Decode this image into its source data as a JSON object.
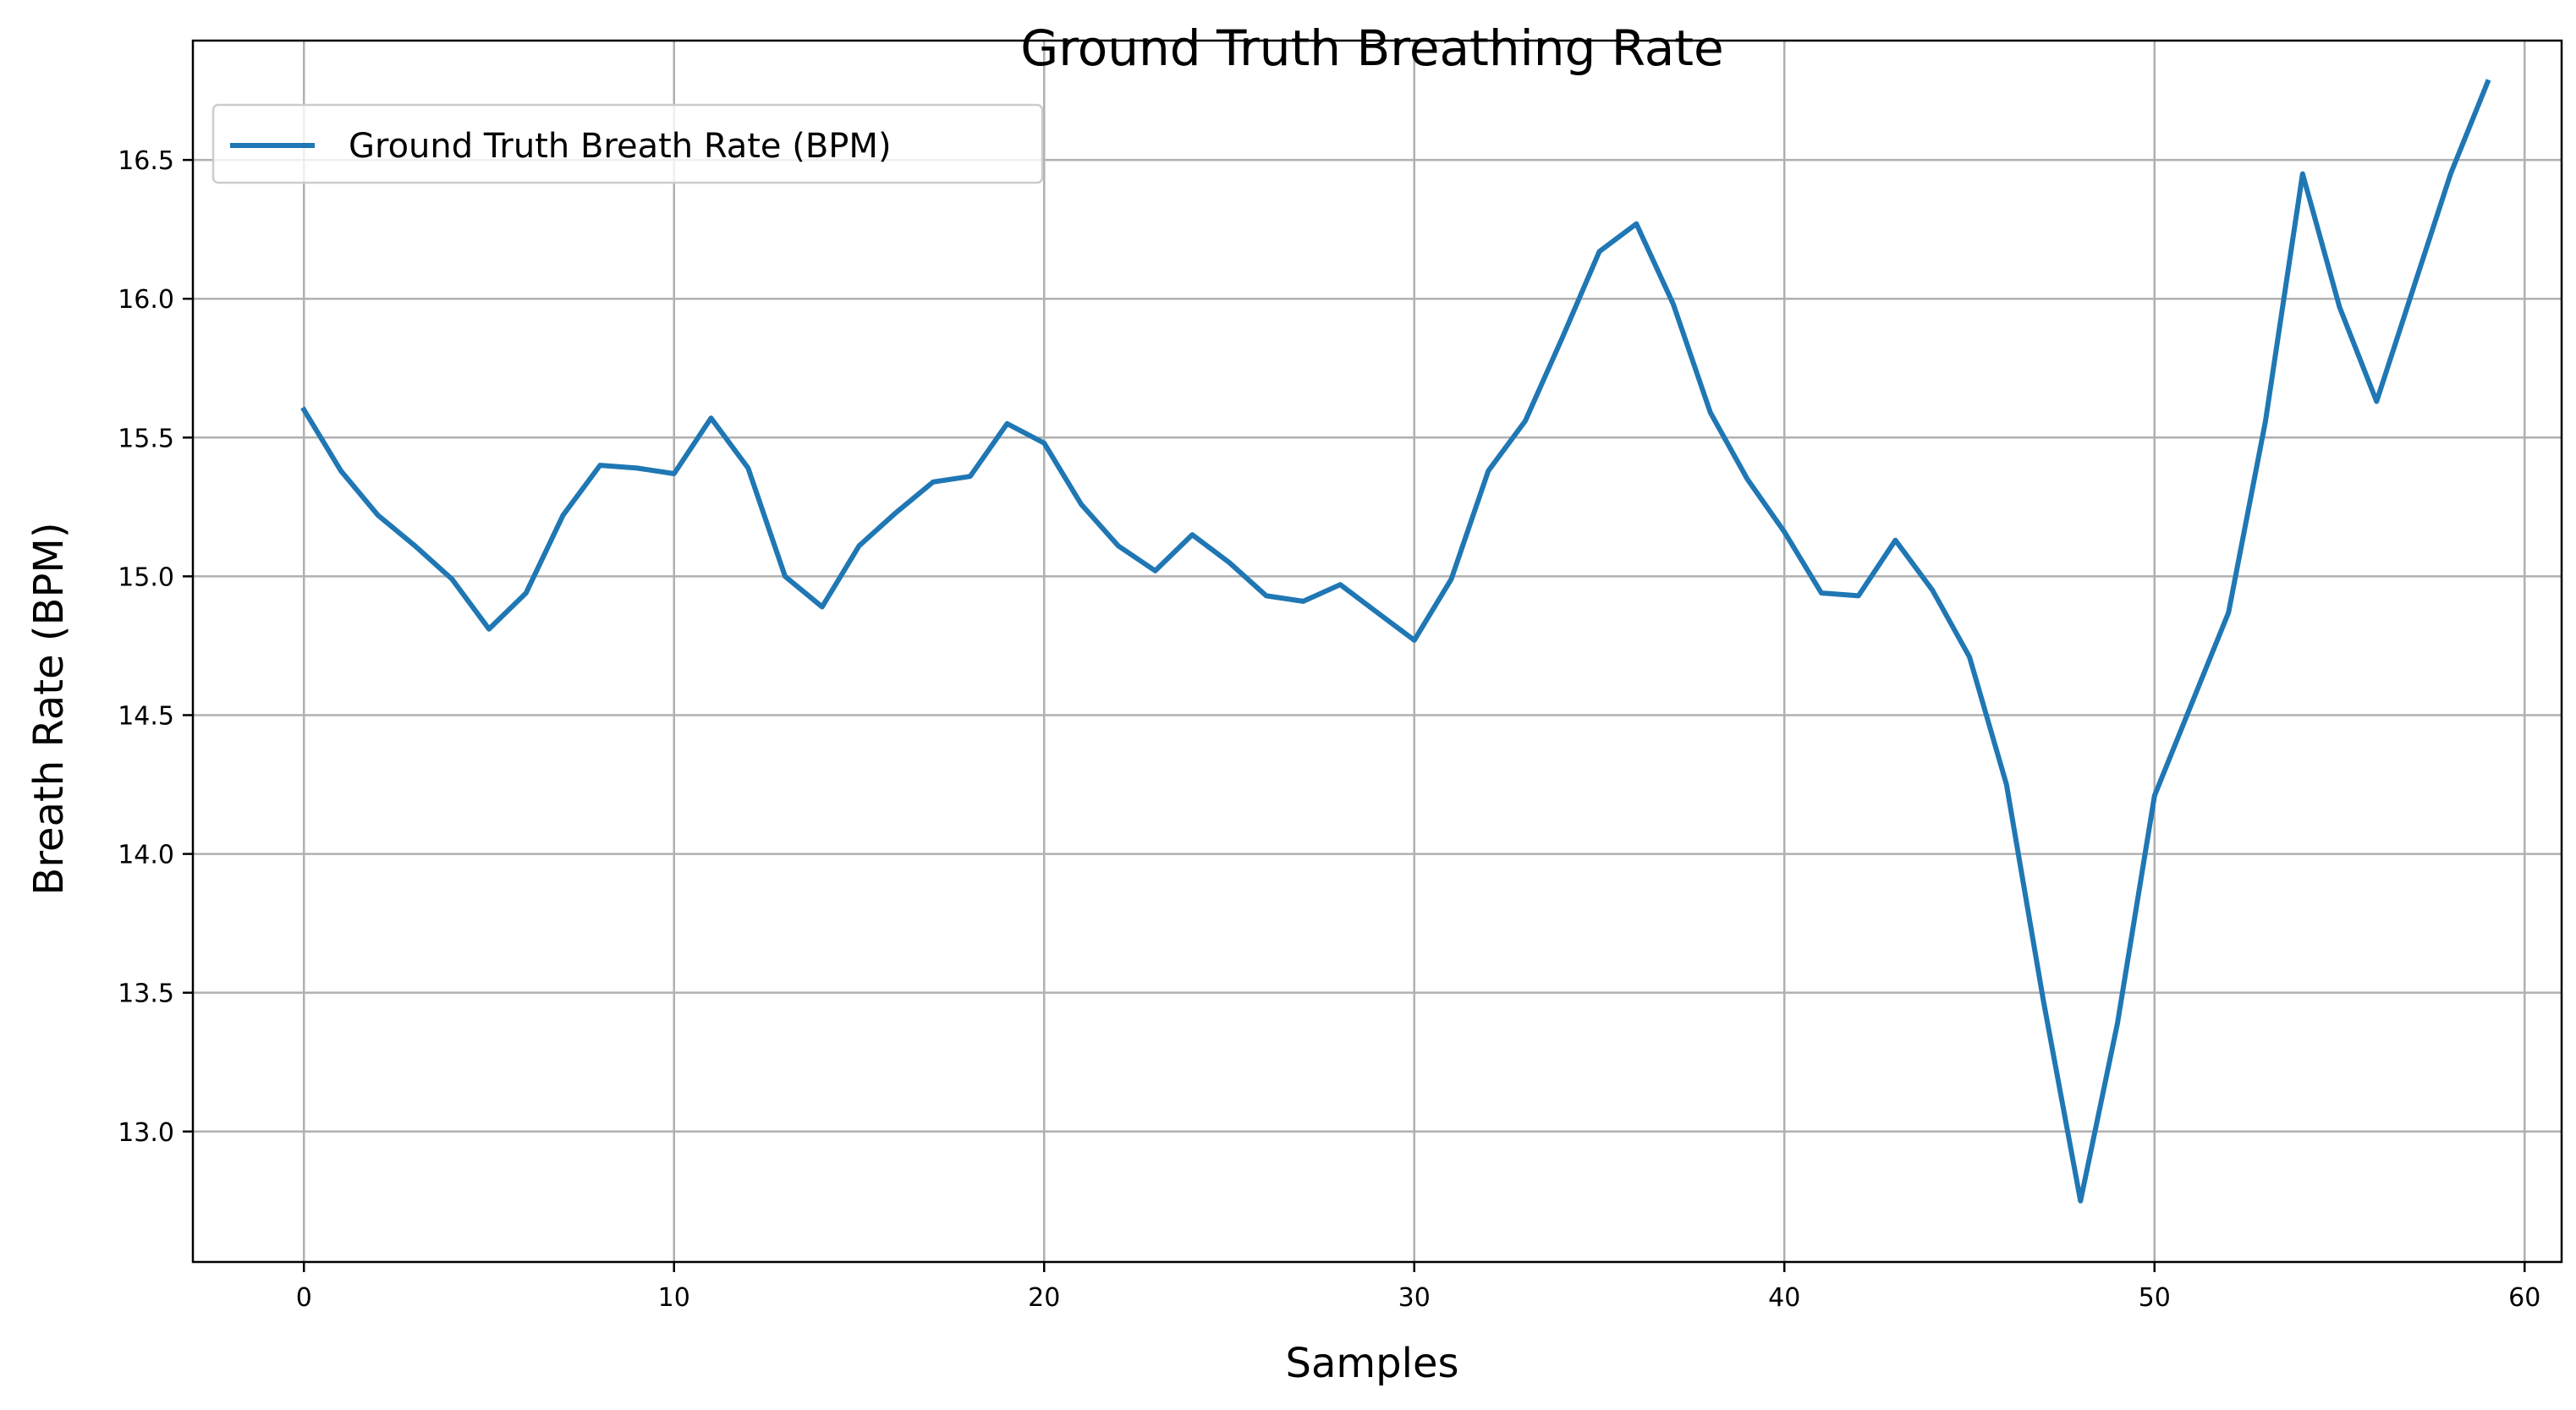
{
  "chart_data": {
    "type": "line",
    "title": "Ground Truth Breathing Rate",
    "xlabel": "Samples",
    "ylabel": "Breath Rate (BPM)",
    "xlim": [
      -3,
      61
    ],
    "ylim": [
      12.53,
      16.93
    ],
    "xticks": [
      0,
      10,
      20,
      30,
      40,
      50,
      60
    ],
    "xtick_labels": [
      "0",
      "10",
      "20",
      "30",
      "40",
      "50",
      "60"
    ],
    "yticks": [
      13.0,
      13.5,
      14.0,
      14.5,
      15.0,
      15.5,
      16.0,
      16.5
    ],
    "ytick_labels": [
      "13.0",
      "13.5",
      "14.0",
      "14.5",
      "15.0",
      "15.5",
      "16.0",
      "16.5"
    ],
    "grid": true,
    "legend_position": "top-left",
    "series": [
      {
        "name": "Ground Truth Breath Rate (BPM)",
        "color": "#1f77b4",
        "x": [
          0,
          1,
          2,
          3,
          4,
          5,
          6,
          7,
          8,
          9,
          10,
          11,
          12,
          13,
          14,
          15,
          16,
          17,
          18,
          19,
          20,
          21,
          22,
          23,
          24,
          25,
          26,
          27,
          28,
          29,
          30,
          31,
          32,
          33,
          34,
          35,
          36,
          37,
          38,
          39,
          40,
          41,
          42,
          43,
          44,
          45,
          46,
          47,
          48,
          49,
          50,
          51,
          52,
          53,
          54,
          55,
          56,
          57,
          58,
          59
        ],
        "values": [
          15.6,
          15.38,
          15.22,
          15.11,
          14.99,
          14.81,
          14.94,
          15.22,
          15.4,
          15.39,
          15.37,
          15.57,
          15.39,
          15.0,
          14.89,
          15.11,
          15.23,
          15.34,
          15.36,
          15.55,
          15.48,
          15.26,
          15.11,
          15.02,
          15.15,
          15.05,
          14.93,
          14.91,
          14.97,
          14.87,
          14.77,
          14.99,
          15.38,
          15.56,
          15.86,
          16.17,
          16.27,
          15.98,
          15.59,
          15.35,
          15.16,
          14.94,
          14.93,
          15.13,
          14.95,
          14.71,
          14.25,
          13.47,
          12.75,
          13.39,
          14.21,
          14.54,
          14.87,
          15.56,
          16.45,
          15.97,
          15.63,
          16.04,
          16.45,
          16.78
        ]
      }
    ]
  }
}
